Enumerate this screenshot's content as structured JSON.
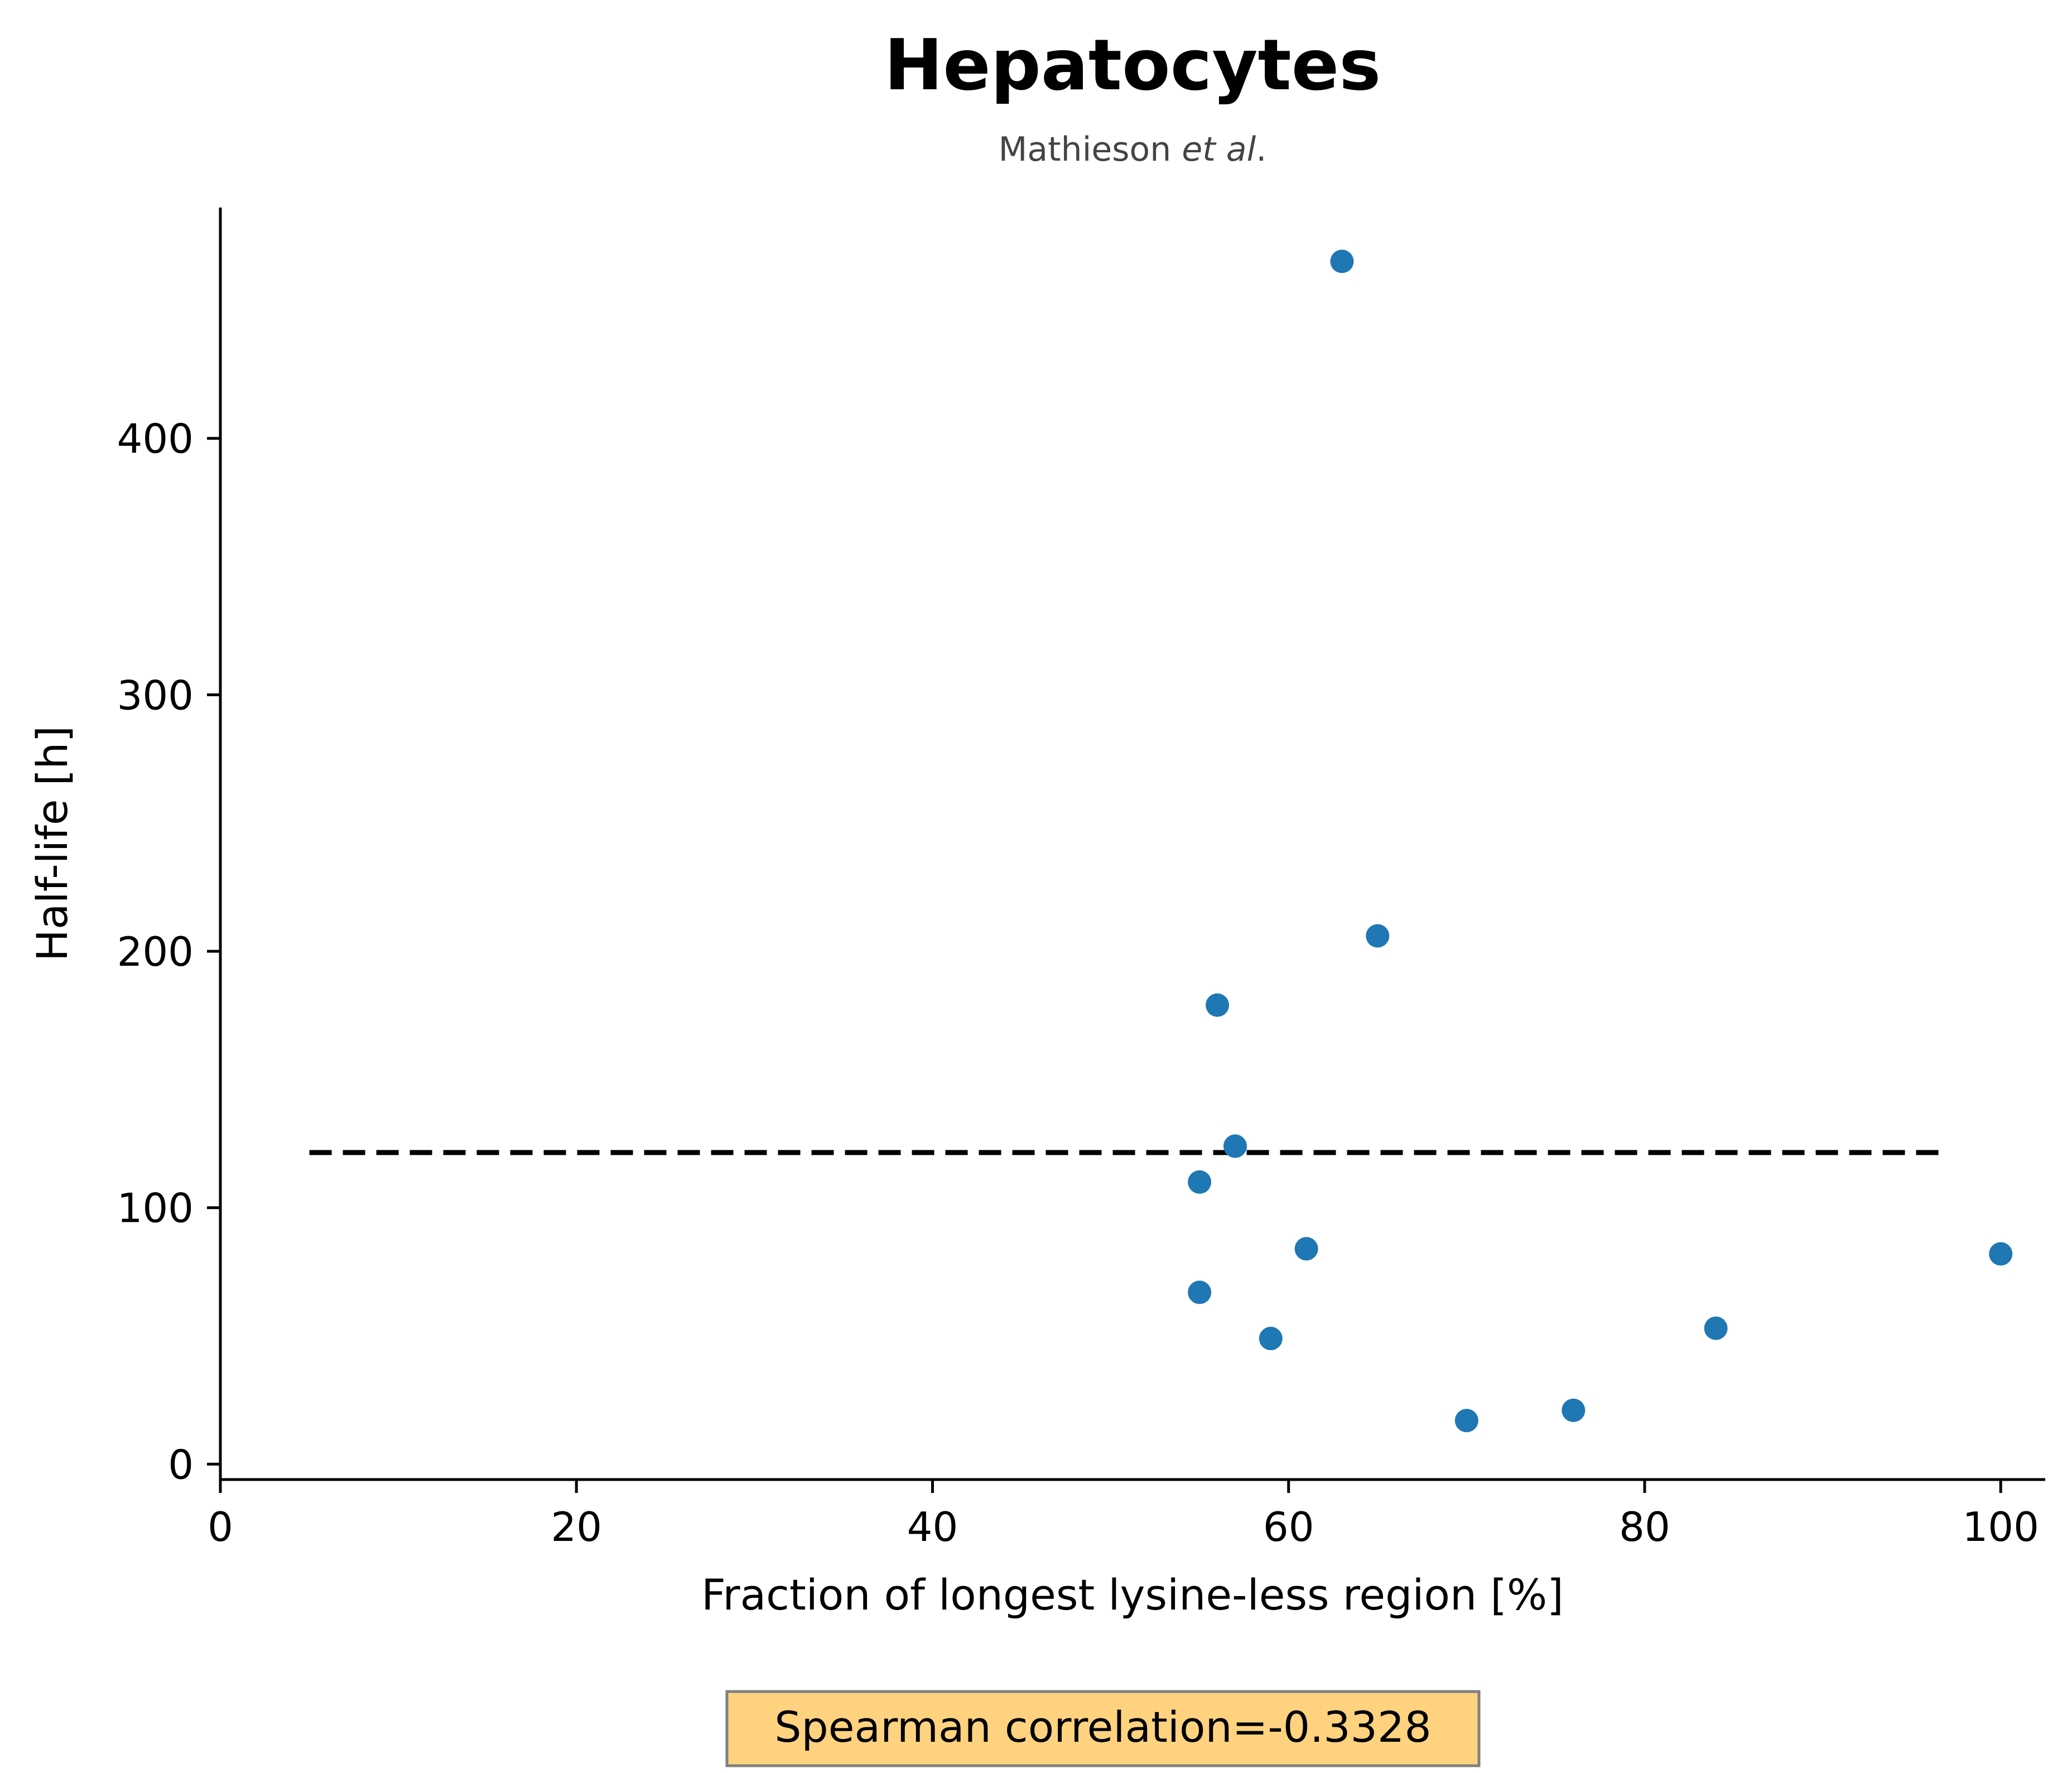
{
  "chart_data": {
    "type": "scatter",
    "title": "Hepatocytes",
    "subtitle_text": "Mathieson ",
    "subtitle_italic": "et al",
    "subtitle_end": ".",
    "xlabel": "Fraction of longest lysine-less region [%]",
    "ylabel": "Half-life [h]",
    "xlim": [
      0,
      102.5
    ],
    "ylim": [
      -6,
      490
    ],
    "xticks": [
      0,
      20,
      40,
      60,
      80,
      100
    ],
    "yticks": [
      0,
      100,
      200,
      300,
      400
    ],
    "grid": false,
    "points": [
      {
        "x": 63,
        "y": 469
      },
      {
        "x": 65,
        "y": 206
      },
      {
        "x": 56,
        "y": 179
      },
      {
        "x": 57,
        "y": 124
      },
      {
        "x": 55,
        "y": 110
      },
      {
        "x": 61,
        "y": 84
      },
      {
        "x": 100,
        "y": 82
      },
      {
        "x": 55,
        "y": 67
      },
      {
        "x": 84,
        "y": 53
      },
      {
        "x": 59,
        "y": 49
      },
      {
        "x": 76,
        "y": 21
      },
      {
        "x": 70,
        "y": 17
      }
    ],
    "reference_line": {
      "style": "dashed",
      "y": 121.5,
      "x_start": 5,
      "x_end": 97
    },
    "annotation": "Spearman correlation=-0.3328",
    "colors": {
      "points": "#1f77b4",
      "reference_line": "#000000",
      "annotation_bg": "#ffd280",
      "annotation_border": "#7f7f7f"
    }
  }
}
